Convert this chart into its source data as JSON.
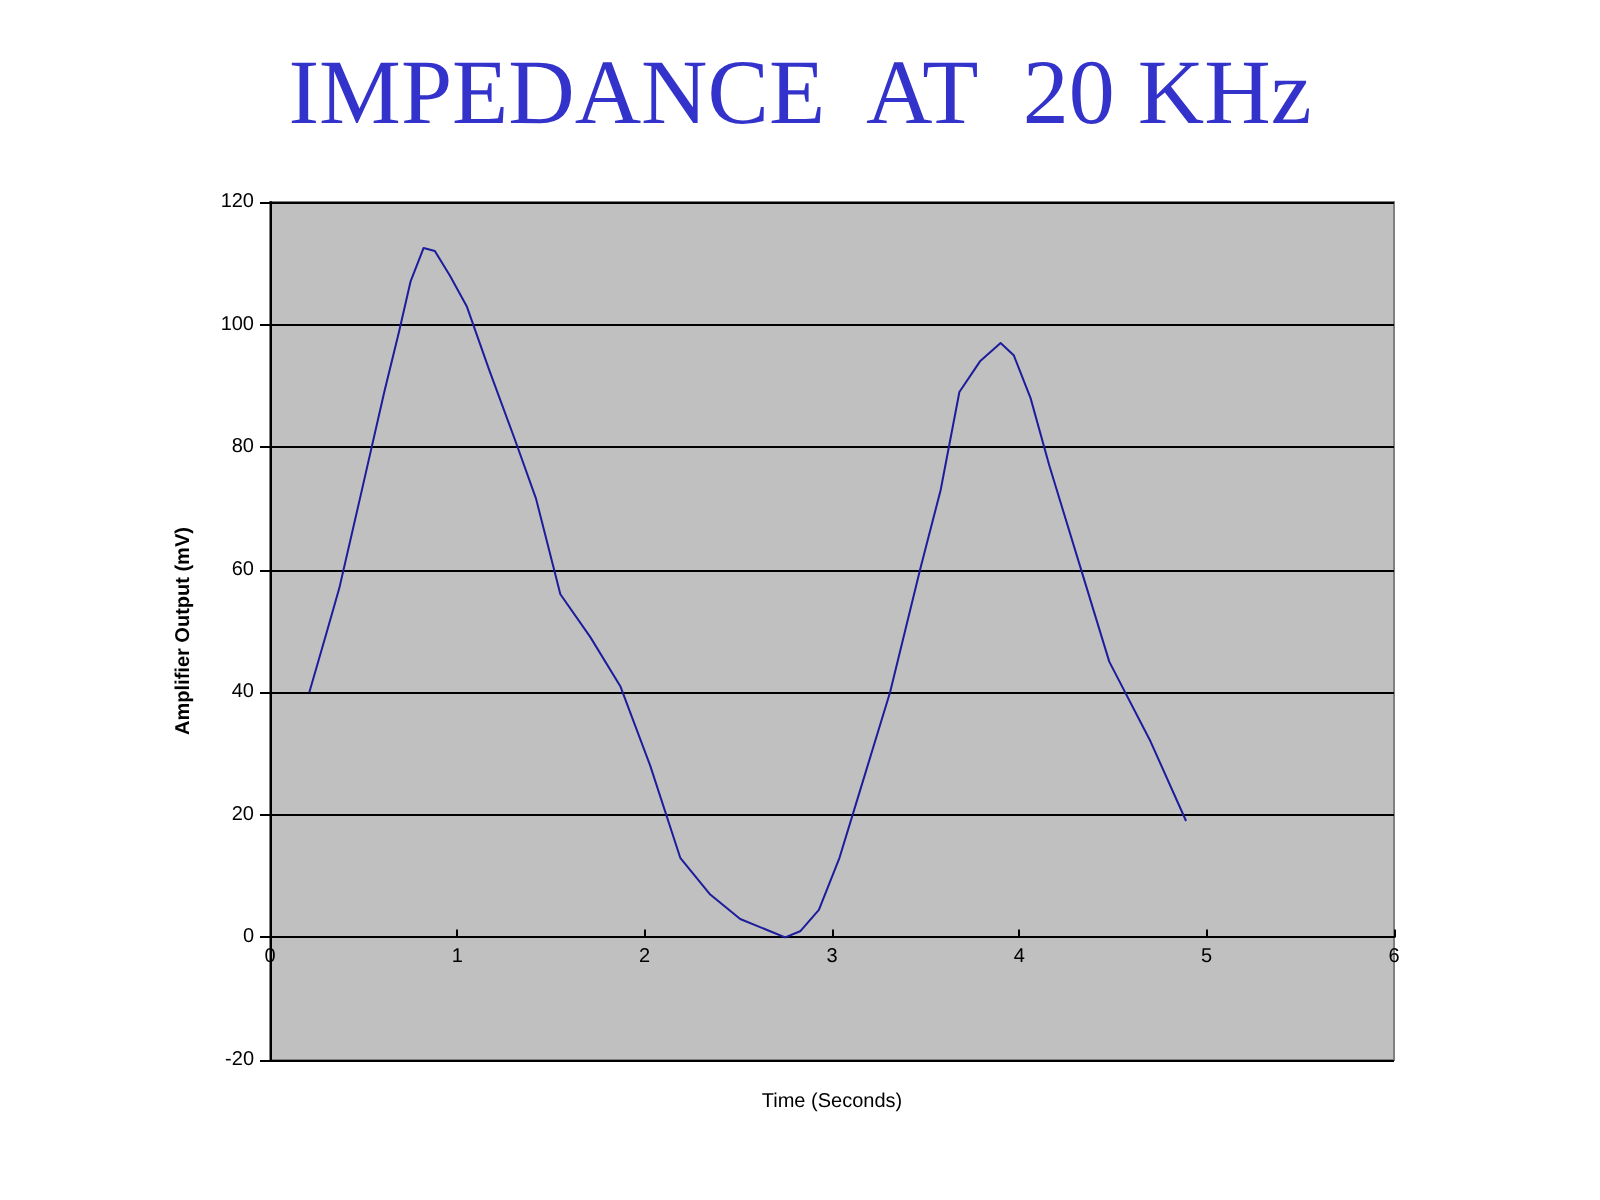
{
  "chart_data": {
    "type": "line",
    "title": "IMPEDANCE  AT  20 KHz",
    "xlabel": "Time (Seconds)",
    "ylabel": "Amplifier Output (mV)",
    "x": [
      0.21,
      0.3,
      0.37,
      0.48,
      0.61,
      0.69,
      0.75,
      0.82,
      0.88,
      0.96,
      1.05,
      1.17,
      1.31,
      1.42,
      1.55,
      1.71,
      1.87,
      2.03,
      2.19,
      2.35,
      2.51,
      2.67,
      2.75,
      2.83,
      2.93,
      3.04,
      3.15,
      3.31,
      3.47,
      3.58,
      3.68,
      3.79,
      3.9,
      3.97,
      4.06,
      4.16,
      4.32,
      4.48,
      4.7,
      4.89
    ],
    "series": [
      {
        "color": "#1c1c9c",
        "values": [
          40,
          49.5,
          57,
          71.6,
          89,
          99,
          107,
          112.5,
          112,
          108,
          103,
          92.6,
          81,
          71.6,
          56,
          49,
          41,
          28,
          13,
          7,
          3,
          1,
          0,
          1,
          4.5,
          13,
          24,
          40,
          60,
          73,
          89,
          94,
          97,
          95,
          88,
          77,
          61,
          45,
          32,
          19
        ]
      }
    ],
    "xlim": [
      0,
      6
    ],
    "xticks": [
      0,
      1,
      2,
      3,
      4,
      5,
      6
    ],
    "ylim": [
      -20,
      120
    ],
    "yticks": [
      -20,
      0,
      20,
      40,
      60,
      80,
      100,
      120
    ],
    "grid": "y",
    "marker": "none",
    "line_style": "solid"
  }
}
